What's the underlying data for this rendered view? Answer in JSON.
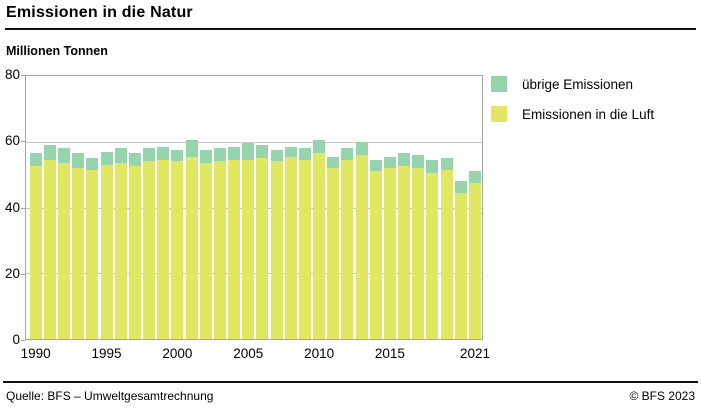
{
  "header": {
    "title": "Emissionen in die Natur",
    "subtitle": "Millionen Tonnen"
  },
  "footer": {
    "source": "Quelle: BFS – Umweltgesamtrechnung",
    "copyright": "© BFS 2023"
  },
  "legend": [
    {
      "label": "übrige Emissionen",
      "color": "#95d4ad"
    },
    {
      "label": "Emissionen in die Luft",
      "color": "#e0e763"
    }
  ],
  "chart_data": {
    "type": "bar",
    "stacked": true,
    "title": "Emissionen in die Natur",
    "ylabel": "Millionen Tonnen",
    "xlabel": "",
    "x": [
      1990,
      1991,
      1992,
      1993,
      1994,
      1995,
      1996,
      1997,
      1998,
      1999,
      2000,
      2001,
      2002,
      2003,
      2004,
      2005,
      2006,
      2007,
      2008,
      2009,
      2010,
      2011,
      2012,
      2013,
      2014,
      2015,
      2016,
      2017,
      2018,
      2019,
      2020,
      2021
    ],
    "x_tick_labels": [
      "1990",
      "1995",
      "2000",
      "2005",
      "2010",
      "2015",
      "2021"
    ],
    "ylim": [
      0,
      80
    ],
    "yticks": [
      0,
      20,
      40,
      60,
      80
    ],
    "grid": "horizontal",
    "legend_position": "top-right",
    "series": [
      {
        "name": "Emissionen in die Luft",
        "color": "#e0e763",
        "values": [
          52.5,
          54.5,
          53.5,
          52,
          51.5,
          53,
          53.5,
          52.5,
          54,
          54.5,
          54,
          55.5,
          53.5,
          54,
          54.5,
          54.5,
          55,
          54,
          55.5,
          54.5,
          56.5,
          52,
          54.5,
          56,
          51,
          52,
          52.5,
          52,
          50.5,
          51.5,
          44.5,
          47.5
        ]
      },
      {
        "name": "übrige Emissionen",
        "color": "#95d4ad",
        "values": [
          4,
          4.5,
          4.5,
          4.5,
          3.5,
          4,
          4.5,
          4,
          4,
          4,
          3.5,
          5,
          4,
          4,
          4,
          5,
          4,
          3.5,
          3,
          3.5,
          4,
          3.5,
          3.5,
          4,
          3.5,
          3.5,
          4,
          4,
          4,
          3.5,
          3.5,
          3.5
        ]
      }
    ]
  }
}
